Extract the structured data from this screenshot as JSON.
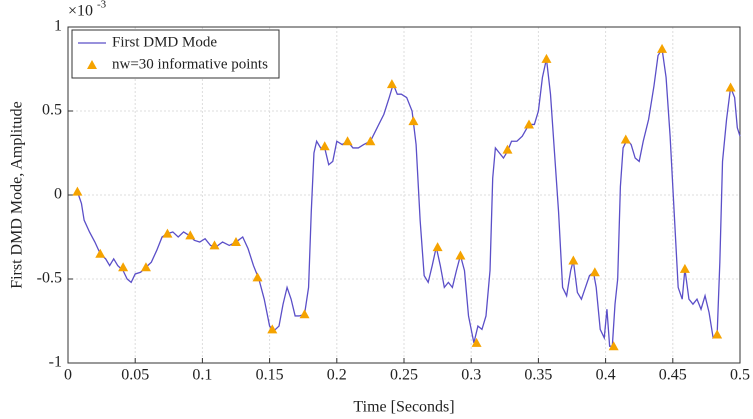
{
  "chart_data": {
    "type": "line",
    "xlabel": "Time [Seconds]",
    "ylabel": "First DMD Mode, Amplitude",
    "y_multiplier": {
      "base": "×10",
      "power": "-3"
    },
    "xlim": [
      0,
      0.5
    ],
    "xticks": [
      0,
      0.05,
      0.1,
      0.15,
      0.2,
      0.25,
      0.3,
      0.35,
      0.4,
      0.45,
      0.5
    ],
    "ylim": [
      -1,
      1
    ],
    "yticks": [
      -1,
      -0.5,
      0,
      0.5,
      1
    ],
    "grid": true,
    "legend": "upper left",
    "series": [
      {
        "name": "First DMD Mode",
        "color": "#5b4fc8",
        "marker": "none",
        "x": [
          0.007,
          0.01,
          0.012,
          0.016,
          0.02,
          0.024,
          0.028,
          0.031,
          0.034,
          0.037,
          0.041,
          0.044,
          0.047,
          0.05,
          0.054,
          0.058,
          0.062,
          0.066,
          0.07,
          0.074,
          0.078,
          0.082,
          0.086,
          0.09,
          0.094,
          0.098,
          0.102,
          0.106,
          0.11,
          0.115,
          0.12,
          0.125,
          0.13,
          0.134,
          0.138,
          0.142,
          0.146,
          0.15,
          0.153,
          0.157,
          0.16,
          0.163,
          0.166,
          0.169,
          0.172,
          0.176,
          0.179,
          0.181,
          0.183,
          0.185,
          0.188,
          0.191,
          0.194,
          0.197,
          0.2,
          0.204,
          0.208,
          0.212,
          0.216,
          0.22,
          0.225,
          0.23,
          0.235,
          0.239,
          0.242,
          0.245,
          0.248,
          0.252,
          0.256,
          0.259,
          0.262,
          0.265,
          0.268,
          0.271,
          0.274,
          0.277,
          0.28,
          0.283,
          0.286,
          0.289,
          0.292,
          0.295,
          0.298,
          0.302,
          0.305,
          0.308,
          0.311,
          0.314,
          0.316,
          0.318,
          0.321,
          0.324,
          0.327,
          0.33,
          0.334,
          0.338,
          0.343,
          0.347,
          0.35,
          0.353,
          0.356,
          0.359,
          0.362,
          0.365,
          0.368,
          0.371,
          0.374,
          0.376,
          0.379,
          0.382,
          0.385,
          0.388,
          0.391,
          0.393,
          0.396,
          0.399,
          0.401,
          0.403,
          0.405,
          0.407,
          0.409,
          0.411,
          0.413,
          0.416,
          0.419,
          0.422,
          0.425,
          0.428,
          0.432,
          0.436,
          0.439,
          0.442,
          0.445,
          0.448,
          0.451,
          0.454,
          0.457,
          0.459,
          0.462,
          0.465,
          0.468,
          0.471,
          0.474,
          0.477,
          0.48,
          0.483,
          0.485,
          0.487,
          0.49,
          0.493,
          0.496,
          0.498,
          0.5
        ],
        "values": [
          0.02,
          -0.05,
          -0.15,
          -0.22,
          -0.28,
          -0.35,
          -0.38,
          -0.42,
          -0.38,
          -0.42,
          -0.45,
          -0.5,
          -0.52,
          -0.47,
          -0.46,
          -0.43,
          -0.4,
          -0.33,
          -0.25,
          -0.23,
          -0.22,
          -0.25,
          -0.22,
          -0.24,
          -0.27,
          -0.28,
          -0.26,
          -0.3,
          -0.31,
          -0.28,
          -0.3,
          -0.28,
          -0.25,
          -0.32,
          -0.42,
          -0.5,
          -0.62,
          -0.78,
          -0.81,
          -0.78,
          -0.65,
          -0.55,
          -0.62,
          -0.72,
          -0.72,
          -0.71,
          -0.55,
          -0.1,
          0.25,
          0.32,
          0.28,
          0.28,
          0.18,
          0.2,
          0.32,
          0.3,
          0.32,
          0.28,
          0.28,
          0.3,
          0.32,
          0.4,
          0.48,
          0.58,
          0.66,
          0.6,
          0.6,
          0.58,
          0.5,
          0.3,
          -0.15,
          -0.48,
          -0.52,
          -0.42,
          -0.31,
          -0.42,
          -0.55,
          -0.52,
          -0.55,
          -0.45,
          -0.36,
          -0.45,
          -0.72,
          -0.88,
          -0.78,
          -0.8,
          -0.72,
          -0.45,
          0.1,
          0.28,
          0.25,
          0.22,
          0.26,
          0.32,
          0.32,
          0.35,
          0.42,
          0.42,
          0.5,
          0.7,
          0.81,
          0.6,
          0.25,
          -0.1,
          -0.55,
          -0.6,
          -0.45,
          -0.39,
          -0.58,
          -0.62,
          -0.55,
          -0.48,
          -0.46,
          -0.55,
          -0.8,
          -0.85,
          -0.68,
          -0.9,
          -0.9,
          -0.65,
          -0.5,
          0.05,
          0.28,
          0.33,
          0.3,
          0.22,
          0.2,
          0.32,
          0.45,
          0.65,
          0.83,
          0.87,
          0.7,
          0.35,
          -0.1,
          -0.55,
          -0.62,
          -0.44,
          -0.62,
          -0.65,
          -0.62,
          -0.68,
          -0.6,
          -0.7,
          -0.85,
          -0.83,
          -0.4,
          0.2,
          0.45,
          0.64,
          0.58,
          0.4,
          0.35
        ]
      },
      {
        "name": "nw=30 informative points",
        "color": "#f5a300",
        "marker": "triangle",
        "x": [
          0.007,
          0.024,
          0.041,
          0.058,
          0.074,
          0.091,
          0.109,
          0.125,
          0.141,
          0.152,
          0.176,
          0.191,
          0.208,
          0.225,
          0.241,
          0.257,
          0.275,
          0.292,
          0.304,
          0.327,
          0.343,
          0.356,
          0.376,
          0.392,
          0.406,
          0.415,
          0.442,
          0.459,
          0.483,
          0.493
        ],
        "values": [
          0.02,
          -0.35,
          -0.43,
          -0.43,
          -0.23,
          -0.24,
          -0.3,
          -0.28,
          -0.49,
          -0.8,
          -0.71,
          0.29,
          0.32,
          0.32,
          0.66,
          0.44,
          -0.31,
          -0.36,
          -0.88,
          0.27,
          0.42,
          0.81,
          -0.39,
          -0.46,
          -0.9,
          0.33,
          0.87,
          -0.44,
          -0.83,
          0.64
        ]
      }
    ]
  }
}
